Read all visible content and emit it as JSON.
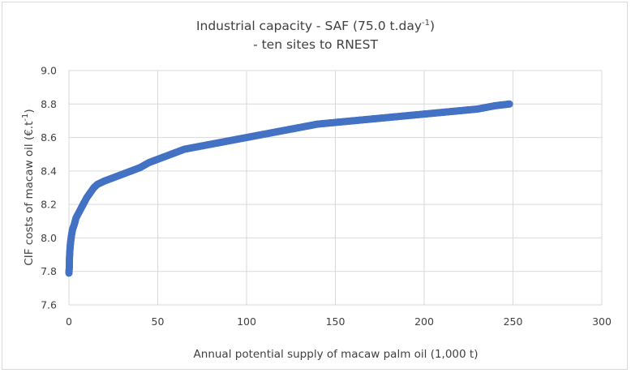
{
  "chart_data": {
    "type": "scatter",
    "title": {
      "line1_prefix": "Industrial capacity - SAF (75.0 t.day",
      "line1_superscript": "-1",
      "line1_suffix": ")",
      "line2": "- ten sites to RNEST"
    },
    "xlabel": "Annual potential supply of macaw palm oil (1,000 t)",
    "ylabel": {
      "prefix": "CIF costs of macaw oil (€.t",
      "superscript": "-1",
      "suffix": ")"
    },
    "xlim": [
      0,
      300
    ],
    "ylim": [
      7.6,
      9.0
    ],
    "x_ticks": [
      "0",
      "50",
      "100",
      "150",
      "200",
      "250",
      "300"
    ],
    "y_ticks": [
      "7.6",
      "7.8",
      "8.0",
      "8.2",
      "8.4",
      "8.6",
      "8.8",
      "9.0"
    ],
    "grid": true,
    "legend": "none",
    "marker_color": "#4472C4",
    "series": [
      {
        "x": [
          0,
          0.1,
          0.2,
          0.3,
          0.5,
          0.7,
          1,
          1.5,
          2,
          3,
          4,
          5,
          6,
          7,
          8,
          10,
          12,
          14,
          16,
          20,
          25,
          30,
          35,
          40,
          45,
          50,
          55,
          60,
          65,
          70,
          75,
          80,
          90,
          100,
          110,
          120,
          130,
          140,
          150,
          160,
          170,
          180,
          190,
          200,
          210,
          220,
          230,
          240,
          248
        ],
        "y": [
          7.79,
          7.81,
          7.82,
          7.88,
          7.92,
          7.95,
          7.98,
          8.02,
          8.05,
          8.08,
          8.12,
          8.14,
          8.16,
          8.18,
          8.2,
          8.24,
          8.27,
          8.3,
          8.32,
          8.34,
          8.36,
          8.38,
          8.4,
          8.42,
          8.45,
          8.47,
          8.49,
          8.51,
          8.53,
          8.54,
          8.55,
          8.56,
          8.58,
          8.6,
          8.62,
          8.64,
          8.66,
          8.68,
          8.69,
          8.7,
          8.71,
          8.72,
          8.73,
          8.74,
          8.75,
          8.76,
          8.77,
          8.79,
          8.8
        ]
      }
    ]
  }
}
